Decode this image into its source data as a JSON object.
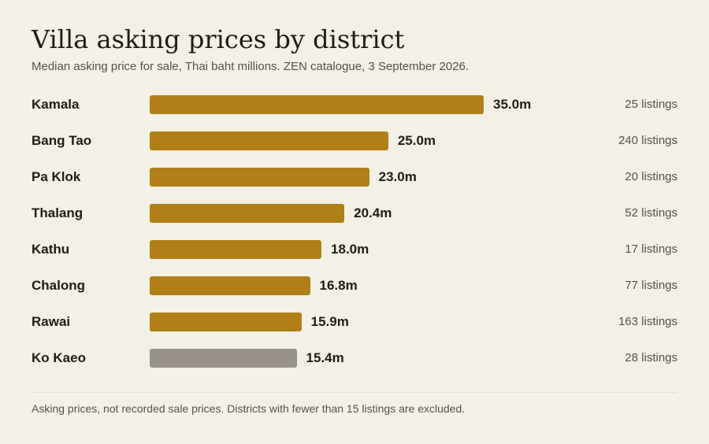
{
  "header": {
    "title": "Villa asking prices by district",
    "subtitle": "Median asking price for sale, Thai baht millions. ZEN catalogue, 3 September 2026."
  },
  "footer": {
    "note": "Asking prices, not recorded sale prices. Districts with fewer than 15 listings are excluded."
  },
  "colors": {
    "bar": "#b07f17",
    "bar_highlight": "#98928a",
    "background": "#f5f0e6"
  },
  "chart_data": {
    "type": "bar",
    "orientation": "horizontal",
    "title": "Villa asking prices by district",
    "subtitle": "Median asking price for sale, Thai baht millions. ZEN catalogue, 3 September 2026.",
    "xlabel": "",
    "ylabel": "",
    "xlim": [
      0,
      35
    ],
    "grid": false,
    "categories": [
      "Kamala",
      "Bang Tao",
      "Pa Klok",
      "Thalang",
      "Kathu",
      "Chalong",
      "Rawai",
      "Ko Kaeo"
    ],
    "values": [
      35.0,
      25.0,
      23.0,
      20.4,
      18.0,
      16.8,
      15.9,
      15.4
    ],
    "value_labels": [
      "35.0m",
      "25.0m",
      "23.0m",
      "20.4m",
      "18.0m",
      "16.8m",
      "15.9m",
      "15.4m"
    ],
    "listing_labels": [
      "25 listings",
      "240 listings",
      "20 listings",
      "52 listings",
      "17 listings",
      "77 listings",
      "163 listings",
      "28 listings"
    ],
    "listings": [
      25,
      240,
      20,
      52,
      17,
      77,
      163,
      28
    ],
    "highlighted": [
      false,
      false,
      false,
      false,
      false,
      false,
      false,
      true
    ]
  }
}
